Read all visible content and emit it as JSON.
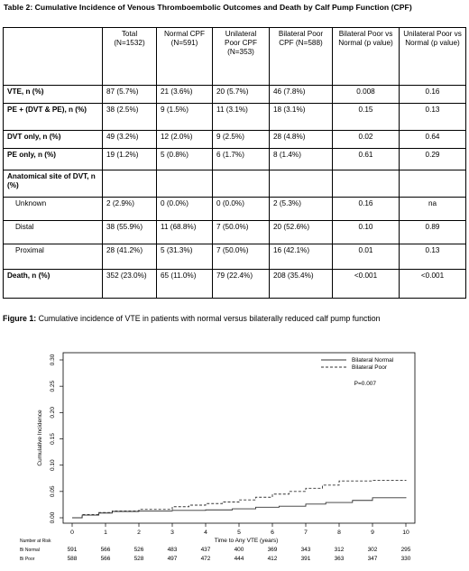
{
  "table": {
    "title": "Table 2: Cumulative Incidence of Venous Thromboembolic Outcomes and Death by Calf Pump Function (CPF)",
    "headers": [
      "",
      "Total (N=1532)",
      "Normal CPF (N=591)",
      "Unilateral Poor CPF (N=353)",
      "Bilateral Poor CPF (N=588)",
      "Bilateral Poor vs Normal (p value)",
      "Unilateral Poor vs Normal (p value)"
    ],
    "rows": [
      [
        "VTE, n (%)",
        "87 (5.7%)",
        "21 (3.6%)",
        "20 (5.7%)",
        "46 (7.8%)",
        "0.008",
        "0.16"
      ],
      [
        "PE + (DVT & PE), n (%)",
        "38 (2.5%)",
        "9 (1.5%)",
        "11 (3.1%)",
        "18 (3.1%)",
        "0.15",
        "0.13"
      ],
      [
        "DVT only, n (%)",
        "49 (3.2%)",
        "12 (2.0%)",
        "9 (2.5%)",
        "28 (4.8%)",
        "0.02",
        "0.64"
      ],
      [
        "PE only, n (%)",
        "19 (1.2%)",
        "5 (0.8%)",
        "6 (1.7%)",
        "8 (1.4%)",
        "0.61",
        "0.29"
      ],
      [
        "Anatomical site of DVT, n (%)",
        "",
        "",
        "",
        "",
        "",
        ""
      ],
      [
        "Unknown",
        "2 (2.9%)",
        "0 (0.0%)",
        "0 (0.0%)",
        "2 (5.3%)",
        "0.16",
        "na"
      ],
      [
        "Distal",
        "38 (55.9%)",
        "11 (68.8%)",
        "7 (50.0%)",
        "20 (52.6%)",
        "0.10",
        "0.89"
      ],
      [
        "Proximal",
        "28 (41.2%)",
        "5 (31.3%)",
        "7 (50.0%)",
        "16 (42.1%)",
        "0.01",
        "0.13"
      ],
      [
        "Death, n (%)",
        "352 (23.0%)",
        "65 (11.0%)",
        "79 (22.4%)",
        "208 (35.4%)",
        "<0.001",
        "<0.001"
      ]
    ]
  },
  "figure": {
    "caption_label": "Figure 1:",
    "caption_text": "Cumulative incidence of VTE in patients with normal versus bilaterally reduced calf pump function"
  },
  "chart_data": {
    "type": "line",
    "title": "",
    "xlabel": "Time to Any VTE (years)",
    "ylabel": "Cumulative Incidence",
    "xlim": [
      0,
      10
    ],
    "ylim": [
      0,
      0.3
    ],
    "x_ticks": [
      "0",
      "1",
      "2",
      "3",
      "4",
      "5",
      "6",
      "7",
      "8",
      "9",
      "10"
    ],
    "y_ticks": [
      "0.00",
      "0.05",
      "0.10",
      "0.15",
      "0.20",
      "0.25",
      "0.30"
    ],
    "annotation": "P=0.007",
    "legend_position": "top-right",
    "series": [
      {
        "name": "Bilateral Normal",
        "style": "solid",
        "x": [
          0,
          0.3,
          0.8,
          1.2,
          2.0,
          3.0,
          4.0,
          4.8,
          5.5,
          6.2,
          7.0,
          7.6,
          8.4,
          9.0,
          10.0
        ],
        "y": [
          0,
          0.005,
          0.009,
          0.012,
          0.013,
          0.014,
          0.015,
          0.017,
          0.02,
          0.022,
          0.026,
          0.029,
          0.033,
          0.038,
          0.039
        ]
      },
      {
        "name": "Bilateral Poor",
        "style": "dashed",
        "x": [
          0,
          0.3,
          0.8,
          1.2,
          2.0,
          3.0,
          3.5,
          4.0,
          4.5,
          5.0,
          5.5,
          6.0,
          6.5,
          7.0,
          7.5,
          8.0,
          9.0,
          10.0
        ],
        "y": [
          0,
          0.006,
          0.01,
          0.013,
          0.016,
          0.021,
          0.024,
          0.027,
          0.03,
          0.034,
          0.039,
          0.045,
          0.05,
          0.056,
          0.062,
          0.07,
          0.071,
          0.072
        ]
      }
    ],
    "number_at_risk": {
      "label": "Number at Risk",
      "rows": [
        {
          "name": "Bi Normal",
          "values": [
            "591",
            "566",
            "526",
            "483",
            "437",
            "400",
            "369",
            "343",
            "312",
            "302",
            "295"
          ]
        },
        {
          "name": "Bi Poor",
          "values": [
            "588",
            "566",
            "528",
            "497",
            "472",
            "444",
            "412",
            "391",
            "363",
            "347",
            "330"
          ]
        }
      ]
    }
  }
}
